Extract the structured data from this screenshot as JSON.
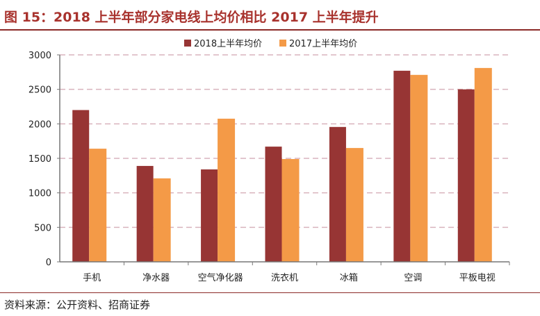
{
  "title": "图 15：2018 上半年部分家电线上均价相比 2017 上半年提升",
  "source": "资料来源：公开资料、招商证券",
  "chart_data": {
    "type": "bar",
    "title": "图 15：2018 上半年部分家电线上均价相比 2017 上半年提升",
    "xlabel": "",
    "ylabel": "",
    "ylim": [
      0,
      3000
    ],
    "yticks": [
      0,
      500,
      1000,
      1500,
      2000,
      2500,
      3000
    ],
    "grid": true,
    "legend_position": "top-center",
    "categories": [
      "手机",
      "净水器",
      "空气净化器",
      "洗衣机",
      "冰箱",
      "空调",
      "平板电视"
    ],
    "series": [
      {
        "name": "2018上半年均价",
        "color": "#973534",
        "values": [
          2200,
          1390,
          1340,
          1670,
          1955,
          2770,
          2500
        ]
      },
      {
        "name": "2017上半年均价",
        "color": "#f49a47",
        "values": [
          1640,
          1210,
          2075,
          1490,
          1650,
          2710,
          2810
        ]
      }
    ]
  }
}
